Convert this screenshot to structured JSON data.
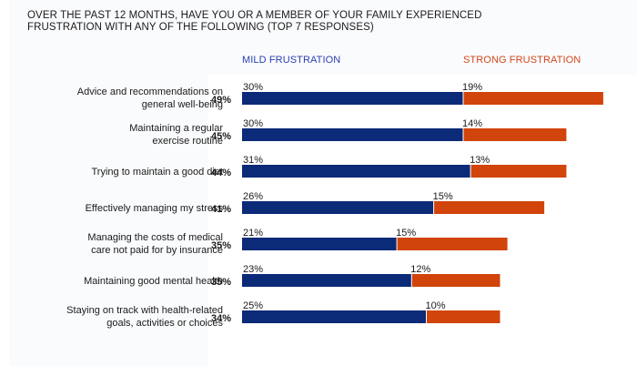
{
  "chart_data": {
    "type": "bar",
    "orientation": "horizontal",
    "stacked": true,
    "title": "OVER THE PAST 12 MONTHS, HAVE YOU OR A MEMBER OF YOUR FAMILY EXPERIENCED FRUSTRATION WITH ANY OF THE FOLLOWING (TOP 7 RESPONSES)",
    "title_lines": [
      "OVER THE PAST 12 MONTHS, HAVE YOU OR A MEMBER OF YOUR FAMILY EXPERIENCED",
      "FRUSTRATION WITH ANY OF THE FOLLOWING (TOP 7 RESPONSES)"
    ],
    "xlabel": "",
    "ylabel": "",
    "grid": false,
    "legend_placement": "top",
    "categories": [
      [
        "Advice and recommendations on",
        "general well-being"
      ],
      [
        "Maintaining a regular",
        "exercise routine"
      ],
      [
        "Trying to maintain a good diet"
      ],
      [
        "Effectively managing my stress"
      ],
      [
        "Managing the costs of medical",
        "care not paid for by insurance"
      ],
      [
        "Maintaining good mental health"
      ],
      [
        "Staying on track with health-related",
        "goals, activities or choices"
      ]
    ],
    "totals": [
      49,
      45,
      44,
      41,
      35,
      35,
      34
    ],
    "series": [
      {
        "name": "MILD FRUSTRATION",
        "color": "#0b2a78",
        "label_color": "#2a3fb0",
        "values": [
          30,
          30,
          31,
          26,
          21,
          23,
          25
        ]
      },
      {
        "name": "STRONG FRUSTRATION",
        "color": "#d1440c",
        "label_color": "#d4471a",
        "values": [
          19,
          14,
          13,
          15,
          15,
          12,
          10
        ]
      }
    ],
    "value_suffix": "%"
  }
}
